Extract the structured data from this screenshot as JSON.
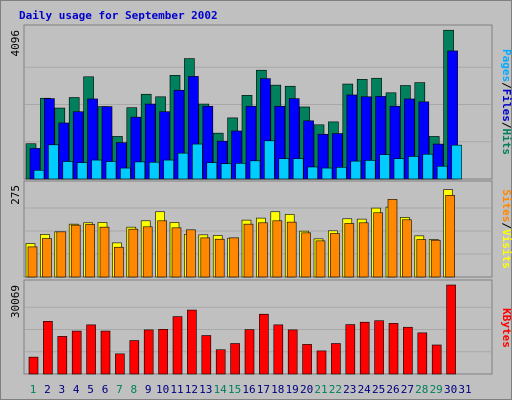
{
  "chart_data": {
    "title": "Daily usage for September 2002",
    "days": [
      "1",
      "2",
      "3",
      "4",
      "5",
      "6",
      "7",
      "8",
      "9",
      "10",
      "11",
      "12",
      "13",
      "14",
      "15",
      "16",
      "17",
      "18",
      "19",
      "20",
      "21",
      "22",
      "23",
      "24",
      "25",
      "26",
      "27",
      "28",
      "29",
      "30",
      "31"
    ],
    "day_colors": [
      "#00805c",
      "#000080",
      "#000080",
      "#000080",
      "#000080",
      "#000080",
      "#00805c",
      "#00805c",
      "#000080",
      "#000080",
      "#000080",
      "#000080",
      "#000080",
      "#00805c",
      "#00805c",
      "#000080",
      "#000080",
      "#000080",
      "#000080",
      "#000080",
      "#00805c",
      "#00805c",
      "#000080",
      "#000080",
      "#000080",
      "#000080",
      "#000080",
      "#00805c",
      "#00805c",
      "#000080",
      "#000080"
    ],
    "panels": [
      {
        "type": "bar",
        "ymax_label": "4096",
        "ymax": 4096,
        "legend": [
          "Pages",
          "/",
          "Files",
          "/",
          "Hits"
        ],
        "legend_colors": [
          "#00aaff",
          "#000000",
          "#0000cc",
          "#000000",
          "#00805c"
        ],
        "series": [
          {
            "name": "Hits",
            "color": "#00805c",
            "values": [
              970,
              2220,
              1950,
              2240,
              2810,
              1990,
              1170,
              1960,
              2330,
              2260,
              2850,
              3310,
              2060,
              1260,
              1680,
              2300,
              2990,
              2580,
              2550,
              1980,
              1490,
              1570,
              2610,
              2740,
              2770,
              2370,
              2570,
              2650,
              1170,
              4090,
              0
            ]
          },
          {
            "name": "Files",
            "color": "#0000ff",
            "values": [
              840,
              2210,
              1540,
              1850,
              2200,
              1990,
              1000,
              1700,
              2060,
              1850,
              2440,
              2820,
              2000,
              1040,
              1320,
              2000,
              2760,
              2000,
              2210,
              1600,
              1230,
              1250,
              2310,
              2260,
              2270,
              2000,
              2200,
              2120,
              960,
              3520,
              0
            ]
          },
          {
            "name": "Pages",
            "color": "#00ccff",
            "values": [
              240,
              940,
              480,
              450,
              520,
              480,
              300,
              470,
              460,
              520,
              710,
              960,
              450,
              420,
              430,
              500,
              1050,
              560,
              560,
              330,
              300,
              320,
              490,
              510,
              670,
              560,
              620,
              680,
              350,
              930,
              0
            ]
          }
        ]
      },
      {
        "type": "bar",
        "ymax_label": "275",
        "ymax": 275,
        "legend": [
          "Sites",
          "/",
          "Visits"
        ],
        "legend_colors": [
          "#ff8800",
          "#000000",
          "#ffff00"
        ],
        "series": [
          {
            "name": "Visits",
            "color": "#ffff00",
            "values": [
              100,
              127,
              135,
              158,
              162,
              163,
              102,
              149,
              168,
              195,
              163,
              127,
              126,
              124,
              116,
              170,
              176,
              195,
              187,
              137,
              114,
              138,
              174,
              173,
              206,
              209,
              178,
              123,
              112,
              261,
              0
            ]
          },
          {
            "name": "Sites",
            "color": "#ff8800",
            "values": [
              90,
              115,
              135,
              155,
              157,
              149,
              89,
              143,
              150,
              168,
              147,
              141,
              117,
              113,
              117,
              158,
              162,
              168,
              164,
              132,
              108,
              130,
              160,
              162,
              192,
              232,
              171,
              112,
              110,
              244,
              0
            ]
          }
        ]
      },
      {
        "type": "bar",
        "ymax_label": "30069",
        "ymax": 30069,
        "legend": [
          "KBytes"
        ],
        "legend_colors": [
          "#ff0000"
        ],
        "series": [
          {
            "name": "KBytes",
            "color": "#ff0000",
            "values": [
              5700,
              17800,
              12700,
              14500,
              16600,
              14500,
              6800,
              11300,
              14900,
              15100,
              19400,
              21600,
              13000,
              8200,
              10300,
              15000,
              20200,
              16600,
              14900,
              10000,
              7800,
              10300,
              16700,
              17500,
              18000,
              17100,
              15800,
              13900,
              9800,
              30069,
              0
            ]
          }
        ]
      }
    ]
  }
}
